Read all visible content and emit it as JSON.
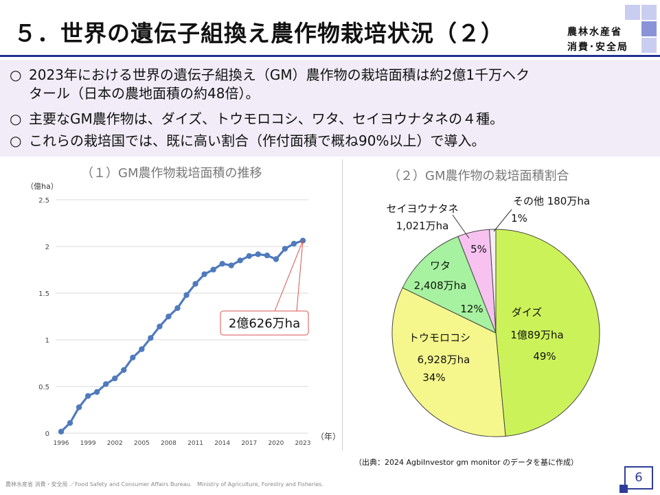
{
  "header": {
    "title": "５．世界の遺伝子組換え農作物栽培状況（２）",
    "org_line1": "農林水産省",
    "org_line2": "消費･安全局"
  },
  "summary": {
    "mark": "○",
    "bullet1_line1": "2023年における世界の遺伝子組換え（GM）農作物の栽培面積は約2億1千万ヘク",
    "bullet1_line2": "タール（日本の農地面積の約48倍）。",
    "bullet2": "主要なGM農作物は、ダイズ、トウモロコシ、ワタ、セイヨウナタネの４種。",
    "bullet3": "これらの栽培国では、既に高い割合（作付面積で概ね90%以上）で導入。"
  },
  "colors": {
    "line": "#4f7abd",
    "callout": "#d9534f",
    "soy": "#ccf25a",
    "corn": "#f5f78c",
    "cotton": "#a6f2a0",
    "rapeseed": "#f7c2f0",
    "other": "#f6eef6",
    "accent": "#1f2f8f"
  },
  "chart_data": [
    {
      "type": "line",
      "title": "（１）GM農作物栽培面積の推移",
      "ylabel": "（億ha）",
      "xlabel": "（年）",
      "ylim": [
        0,
        2.5
      ],
      "yticks": [
        "0",
        "0.5",
        "1",
        "1.5",
        "2",
        "2.5"
      ],
      "xtick_labels": [
        "1996",
        "1999",
        "2002",
        "2005",
        "2008",
        "2011",
        "2014",
        "2017",
        "2020",
        "2023"
      ],
      "x_first": 1996,
      "x_last": 2023,
      "series": [
        {
          "x": [
            1996,
            1997,
            1998,
            1999,
            2000,
            2001,
            2002,
            2003,
            2004,
            2005,
            2006,
            2007,
            2008,
            2009,
            2010,
            2011,
            2012,
            2013,
            2014,
            2015,
            2016,
            2017,
            2018,
            2019,
            2020,
            2021,
            2022,
            2023
          ],
          "values": [
            0.017,
            0.11,
            0.278,
            0.399,
            0.442,
            0.526,
            0.587,
            0.677,
            0.81,
            0.9,
            1.02,
            1.143,
            1.25,
            1.34,
            1.48,
            1.6,
            1.703,
            1.752,
            1.815,
            1.797,
            1.851,
            1.898,
            1.917,
            1.904,
            1.864,
            1.976,
            2.03,
            2.0626
          ]
        }
      ],
      "annotation": "2億626万ha"
    },
    {
      "type": "pie",
      "title": "（２）GM農作物の栽培面積割合",
      "slices": [
        {
          "key": "soy",
          "name": "ダイズ",
          "area": "1億89万ha",
          "percent": 49
        },
        {
          "key": "corn",
          "name": "トウモロコシ",
          "area": "6,928万ha",
          "percent": 34
        },
        {
          "key": "cotton",
          "name": "ワタ",
          "area": "2,408万ha",
          "percent": 12
        },
        {
          "key": "rapeseed",
          "name": "セイヨウナタネ",
          "area": "1,021万ha",
          "percent": 5
        },
        {
          "key": "other",
          "name": "その他",
          "area": "180万ha",
          "percent": 1
        }
      ],
      "other_label": "その他 180万ha"
    }
  ],
  "source": "（出典：2024 AgbiInvestor gm monitor のデータを基に作成）",
  "footer": "農林水産省 消費・安全局 ／Food Safety and Consumer Affairs Bureau.　Ministry of Agriculture, Forestry and Fisheries.",
  "page_number": "6"
}
